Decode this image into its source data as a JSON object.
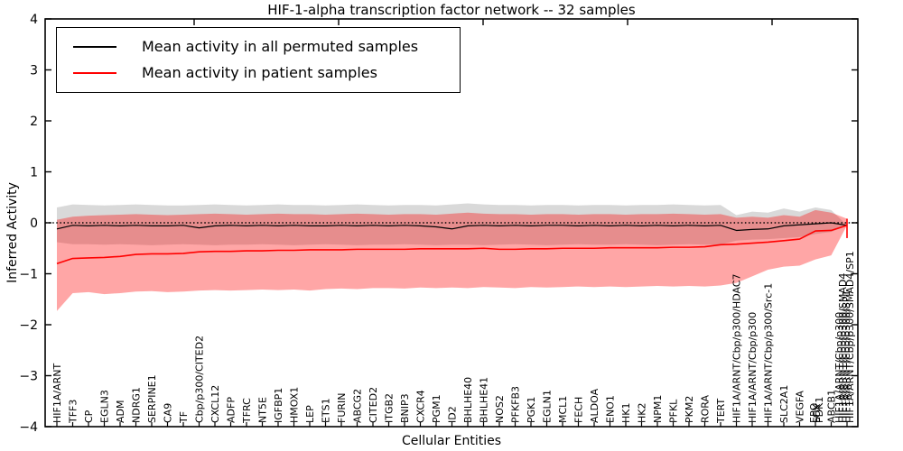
{
  "chart_data": {
    "type": "line",
    "title": "HIF-1-alpha transcription factor network -- 32 samples",
    "xlabel": "Cellular Entities",
    "ylabel": "Inferred Activity",
    "ylim": [
      -4,
      4
    ],
    "yticks": [
      "4",
      "3",
      "2",
      "1",
      "0",
      "−1",
      "−2",
      "−3",
      "−4"
    ],
    "ytick_values": [
      4,
      3,
      2,
      1,
      0,
      -1,
      -2,
      -3,
      -4
    ],
    "zero_line": 0,
    "legend_position": "upper left",
    "legend": [
      {
        "label": "Mean activity in all permuted samples",
        "color": "#000000"
      },
      {
        "label": "Mean activity in patient samples",
        "color": "#ff0000"
      }
    ],
    "band_colors": {
      "permuted": "#808080",
      "patient": "#ff0000"
    },
    "band_opacity": {
      "permuted": 0.3,
      "patient": 0.35
    },
    "x_categories": [
      "HIF1A/ARNT",
      "TFF3",
      "CP",
      "EGLN3",
      "ADM",
      "NDRG1",
      "SERPINE1",
      "CA9",
      "TF",
      "Cbp/p300/CITED2",
      "CXCL12",
      "ADFP",
      "TFRC",
      "NT5E",
      "IGFBP1",
      "HMOX1",
      "LEP",
      "ETS1",
      "FURIN",
      "ABCG2",
      "CITED2",
      "ITGB2",
      "BNIP3",
      "CXCR4",
      "PGM1",
      "ID2",
      "BHLHE40",
      "BHLHE41",
      "NOS2",
      "PFKFB3",
      "PGK1",
      "EGLN1",
      "MCL1",
      "FECH",
      "ALDOA",
      "ENO1",
      "HK1",
      "HK2",
      "NPM1",
      "PFKL",
      "PKM2",
      "RORA",
      "TERT",
      "HIF1A/ARNT/Cbp/p300/HDAC7",
      "HIF1A/ARNT/Cbp/p300",
      "HIF1A/ARNT/Cbp/p300/Src-1",
      "SLC2A1",
      "VEGFA",
      [
        "EPO",
        "LOX",
        "PDK1"
      ],
      "ABCB1",
      [
        "HIF1A/ARNT/Cbp/p300",
        "HIF1A/ARNT/Cbp/p300/SMAD4",
        "HIF1A/ARNT/Cbp/p300/SP1",
        "HIF1A/ARNT/Cbp/p300/SMAD4/SP1"
      ]
    ],
    "series": [
      {
        "name": "mean_permuted",
        "color": "#000000",
        "width": 1.2,
        "values": [
          -0.12,
          -0.05,
          -0.06,
          -0.05,
          -0.06,
          -0.05,
          -0.06,
          -0.06,
          -0.05,
          -0.1,
          -0.06,
          -0.05,
          -0.06,
          -0.05,
          -0.06,
          -0.05,
          -0.06,
          -0.06,
          -0.05,
          -0.06,
          -0.05,
          -0.06,
          -0.05,
          -0.06,
          -0.08,
          -0.12,
          -0.06,
          -0.05,
          -0.06,
          -0.05,
          -0.06,
          -0.05,
          -0.05,
          -0.06,
          -0.05,
          -0.06,
          -0.05,
          -0.06,
          -0.05,
          -0.06,
          -0.05,
          -0.06,
          -0.05,
          -0.15,
          -0.13,
          -0.12,
          -0.06,
          -0.04,
          -0.02,
          0.0,
          -0.05
        ]
      },
      {
        "name": "mean_patient",
        "color": "#ff0000",
        "width": 1.6,
        "values": [
          -0.8,
          -0.7,
          -0.69,
          -0.68,
          -0.66,
          -0.62,
          -0.61,
          -0.61,
          -0.6,
          -0.57,
          -0.56,
          -0.56,
          -0.55,
          -0.55,
          -0.54,
          -0.54,
          -0.53,
          -0.53,
          -0.53,
          -0.52,
          -0.52,
          -0.52,
          -0.52,
          -0.51,
          -0.51,
          -0.51,
          -0.51,
          -0.5,
          -0.52,
          -0.52,
          -0.51,
          -0.51,
          -0.5,
          -0.5,
          -0.5,
          -0.49,
          -0.49,
          -0.49,
          -0.49,
          -0.48,
          -0.48,
          -0.47,
          -0.43,
          -0.42,
          -0.4,
          -0.38,
          -0.35,
          -0.32,
          -0.16,
          -0.15,
          -0.05
        ]
      },
      {
        "name": "permuted_band_upper",
        "values": [
          0.3,
          0.36,
          0.35,
          0.34,
          0.35,
          0.36,
          0.35,
          0.34,
          0.34,
          0.35,
          0.36,
          0.35,
          0.34,
          0.35,
          0.36,
          0.35,
          0.35,
          0.34,
          0.35,
          0.36,
          0.35,
          0.34,
          0.35,
          0.35,
          0.34,
          0.36,
          0.38,
          0.36,
          0.35,
          0.35,
          0.34,
          0.35,
          0.35,
          0.34,
          0.35,
          0.35,
          0.34,
          0.35,
          0.35,
          0.36,
          0.35,
          0.34,
          0.35,
          0.15,
          0.22,
          0.2,
          0.28,
          0.22,
          0.3,
          0.25,
          -0.05
        ]
      },
      {
        "name": "permuted_band_lower",
        "values": [
          -0.38,
          -0.42,
          -0.42,
          -0.43,
          -0.42,
          -0.43,
          -0.44,
          -0.43,
          -0.42,
          -0.43,
          -0.44,
          -0.43,
          -0.43,
          -0.42,
          -0.43,
          -0.44,
          -0.43,
          -0.42,
          -0.43,
          -0.44,
          -0.43,
          -0.43,
          -0.42,
          -0.43,
          -0.44,
          -0.43,
          -0.43,
          -0.44,
          -0.43,
          -0.42,
          -0.43,
          -0.44,
          -0.43,
          -0.42,
          -0.43,
          -0.43,
          -0.42,
          -0.43,
          -0.44,
          -0.43,
          -0.42,
          -0.43,
          -0.43,
          -0.35,
          -0.33,
          -0.32,
          -0.3,
          -0.28,
          -0.22,
          -0.18,
          -0.05
        ]
      },
      {
        "name": "patient_band_upper",
        "values": [
          0.06,
          0.12,
          0.14,
          0.15,
          0.16,
          0.17,
          0.16,
          0.15,
          0.16,
          0.17,
          0.18,
          0.17,
          0.16,
          0.17,
          0.18,
          0.17,
          0.17,
          0.16,
          0.17,
          0.18,
          0.17,
          0.16,
          0.17,
          0.17,
          0.16,
          0.18,
          0.2,
          0.18,
          0.17,
          0.17,
          0.16,
          0.17,
          0.17,
          0.16,
          0.17,
          0.17,
          0.16,
          0.17,
          0.17,
          0.18,
          0.17,
          0.16,
          0.17,
          0.1,
          0.12,
          0.1,
          0.15,
          0.12,
          0.25,
          0.2,
          0.08
        ]
      },
      {
        "name": "patient_band_lower",
        "values": [
          -1.73,
          -1.38,
          -1.36,
          -1.4,
          -1.38,
          -1.35,
          -1.34,
          -1.36,
          -1.35,
          -1.33,
          -1.32,
          -1.33,
          -1.32,
          -1.31,
          -1.32,
          -1.31,
          -1.33,
          -1.3,
          -1.29,
          -1.3,
          -1.28,
          -1.28,
          -1.29,
          -1.27,
          -1.28,
          -1.27,
          -1.28,
          -1.26,
          -1.27,
          -1.28,
          -1.26,
          -1.27,
          -1.26,
          -1.25,
          -1.26,
          -1.25,
          -1.26,
          -1.25,
          -1.24,
          -1.25,
          -1.24,
          -1.25,
          -1.23,
          -1.18,
          -1.05,
          -0.92,
          -0.86,
          -0.84,
          -0.72,
          -0.64,
          -0.05
        ]
      }
    ],
    "end_spike": {
      "index": 50,
      "from": -0.3,
      "to": 0.08
    }
  }
}
